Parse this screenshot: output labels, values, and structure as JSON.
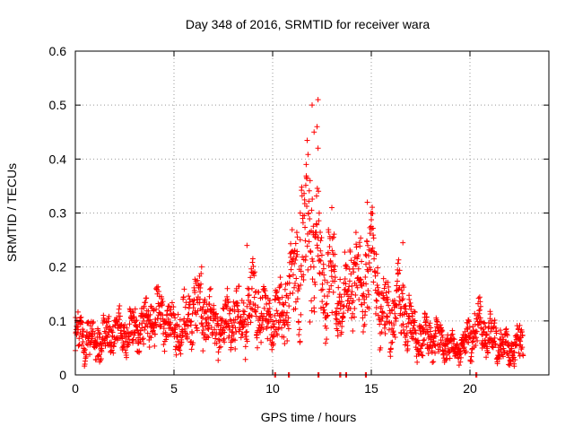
{
  "chart_data": {
    "type": "scatter",
    "title": "Day 348 of 2016, SRMTID for receiver wara",
    "xlabel": "GPS time / hours",
    "ylabel": "SRMTID / TECUs",
    "xlim": [
      0,
      24
    ],
    "ylim": [
      0,
      0.6
    ],
    "grid": true,
    "marker": "plus",
    "series_color": "#ff0000",
    "x_ticks": [
      0,
      5,
      10,
      15,
      20
    ],
    "x_tick_labels": [
      "0",
      "5",
      "10",
      "15",
      "20"
    ],
    "y_ticks": [
      0,
      0.1,
      0.2,
      0.3,
      0.4,
      0.5,
      0.6
    ],
    "y_tick_labels": [
      "0",
      "0.1",
      "0.2",
      "0.3",
      "0.4",
      "0.5",
      "0.6"
    ],
    "baseline_hours": [
      10.1,
      10.8,
      12.3,
      13.4,
      13.7,
      14.7,
      20.3
    ],
    "envelope": {
      "hours": [
        0.0,
        0.5,
        1.0,
        1.5,
        2.0,
        2.5,
        3.0,
        3.5,
        4.0,
        4.5,
        5.0,
        5.5,
        6.0,
        6.5,
        7.0,
        7.5,
        8.0,
        8.5,
        9.0,
        9.5,
        10.0,
        10.5,
        11.0,
        11.5,
        12.0,
        12.5,
        13.0,
        13.5,
        14.0,
        14.5,
        15.0,
        15.5,
        16.0,
        16.5,
        17.0,
        17.5,
        18.0,
        18.5,
        19.0,
        19.5,
        20.0,
        20.5,
        21.0,
        21.5,
        22.0,
        22.5
      ],
      "center": [
        0.075,
        0.07,
        0.06,
        0.07,
        0.08,
        0.075,
        0.085,
        0.09,
        0.11,
        0.1,
        0.085,
        0.09,
        0.13,
        0.12,
        0.09,
        0.09,
        0.11,
        0.1,
        0.14,
        0.11,
        0.1,
        0.11,
        0.16,
        0.23,
        0.27,
        0.19,
        0.17,
        0.12,
        0.19,
        0.16,
        0.22,
        0.12,
        0.11,
        0.13,
        0.09,
        0.07,
        0.07,
        0.06,
        0.05,
        0.045,
        0.07,
        0.09,
        0.07,
        0.06,
        0.045,
        0.06
      ],
      "spread": [
        0.03,
        0.03,
        0.025,
        0.03,
        0.03,
        0.03,
        0.03,
        0.035,
        0.04,
        0.035,
        0.03,
        0.04,
        0.05,
        0.05,
        0.04,
        0.035,
        0.045,
        0.04,
        0.06,
        0.04,
        0.04,
        0.045,
        0.07,
        0.11,
        0.13,
        0.08,
        0.07,
        0.05,
        0.06,
        0.06,
        0.07,
        0.05,
        0.045,
        0.06,
        0.035,
        0.03,
        0.03,
        0.025,
        0.02,
        0.02,
        0.03,
        0.035,
        0.03,
        0.025,
        0.02,
        0.03
      ]
    },
    "highlighted_points": [
      {
        "x": 12.3,
        "y": 0.51
      },
      {
        "x": 12.0,
        "y": 0.5
      },
      {
        "x": 12.25,
        "y": 0.46
      },
      {
        "x": 12.1,
        "y": 0.45
      },
      {
        "x": 12.3,
        "y": 0.42
      },
      {
        "x": 11.7,
        "y": 0.39
      },
      {
        "x": 11.9,
        "y": 0.36
      },
      {
        "x": 13.0,
        "y": 0.31
      },
      {
        "x": 14.8,
        "y": 0.32
      },
      {
        "x": 11.4,
        "y": 0.3
      },
      {
        "x": 16.6,
        "y": 0.245
      },
      {
        "x": 8.7,
        "y": 0.24
      },
      {
        "x": 6.4,
        "y": 0.2
      },
      {
        "x": 4.1,
        "y": 0.16
      },
      {
        "x": 20.5,
        "y": 0.12
      }
    ]
  }
}
